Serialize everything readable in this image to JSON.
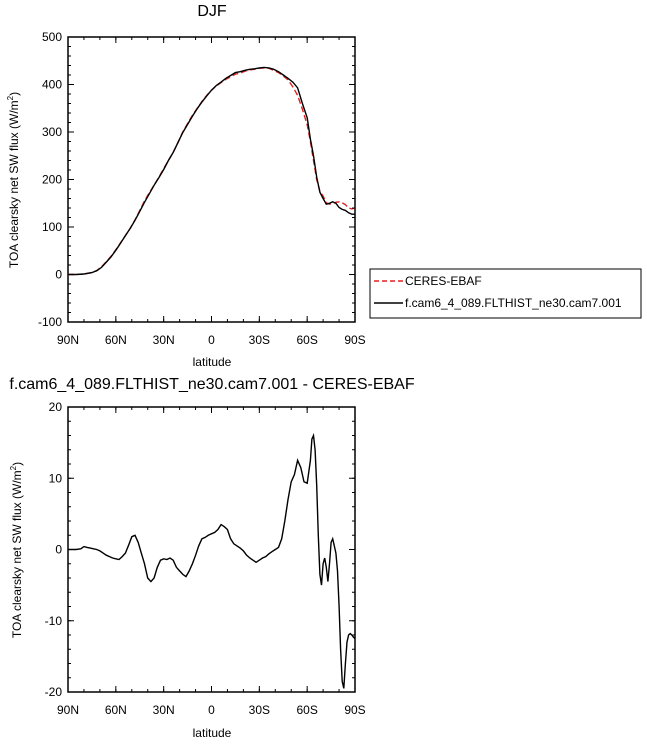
{
  "chart_data": [
    {
      "type": "line",
      "title": "DJF",
      "xlabel": "latitude",
      "ylabel": "TOA clearsky net SW flux",
      "ylabel_unit": "(W/m",
      "ylabel_sup": "2",
      "ylabel_close": ")",
      "xlim": [
        90,
        -90
      ],
      "ylim": [
        -100,
        500
      ],
      "xticks": [
        90,
        60,
        30,
        0,
        -30,
        -60,
        -90
      ],
      "xticklabels": [
        "90N",
        "60N",
        "30N",
        "0",
        "30S",
        "60S",
        "90S"
      ],
      "yticks": [
        -100,
        0,
        100,
        200,
        300,
        400,
        500
      ],
      "yticklabels": [
        "-100",
        "0",
        "100",
        "200",
        "300",
        "400",
        "500"
      ],
      "legend_position": "right",
      "series": [
        {
          "name": "CERES-EBAF",
          "color": "#e02020",
          "dash": "dashed",
          "x": [
            90,
            85,
            80,
            75,
            72,
            69,
            66,
            63,
            60,
            57,
            54,
            51,
            48,
            45,
            42,
            39,
            36,
            33,
            30,
            27,
            24,
            21,
            18,
            15,
            12,
            9,
            6,
            3,
            0,
            -3,
            -6,
            -9,
            -12,
            -15,
            -18,
            -21,
            -24,
            -27,
            -30,
            -33,
            -36,
            -39,
            -42,
            -45,
            -48,
            -51,
            -54,
            -57,
            -60,
            -62,
            -64,
            -66,
            -68,
            -70,
            -72,
            -74,
            -76,
            -78,
            -80,
            -82,
            -84,
            -86,
            -88,
            -90
          ],
          "y": [
            0,
            0,
            1,
            4,
            8,
            16,
            27,
            38,
            52,
            67,
            82,
            97,
            115,
            135,
            155,
            172,
            188,
            205,
            223,
            240,
            257,
            278,
            300,
            318,
            335,
            350,
            364,
            377,
            388,
            397,
            404,
            411,
            416,
            422,
            424,
            428,
            431,
            432,
            434,
            435,
            434,
            430,
            425,
            418,
            410,
            395,
            377,
            348,
            315,
            280,
            240,
            200,
            175,
            165,
            151,
            148,
            149,
            152,
            153,
            151,
            147,
            140,
            138,
            140
          ]
        },
        {
          "name": "f.cam6_4_089.FLTHIST_ne30.cam7.001",
          "color": "#000000",
          "dash": "solid",
          "x": [
            90,
            85,
            80,
            75,
            72,
            69,
            66,
            63,
            60,
            57,
            54,
            51,
            48,
            45,
            42,
            39,
            36,
            33,
            30,
            27,
            24,
            21,
            18,
            15,
            12,
            9,
            6,
            3,
            0,
            -3,
            -6,
            -9,
            -12,
            -15,
            -18,
            -21,
            -24,
            -27,
            -30,
            -33,
            -36,
            -39,
            -42,
            -45,
            -48,
            -51,
            -54,
            -57,
            -60,
            -62,
            -64,
            -66,
            -68,
            -70,
            -72,
            -74,
            -76,
            -78,
            -80,
            -82,
            -84,
            -86,
            -88,
            -90
          ],
          "y": [
            0,
            0,
            1,
            4,
            8,
            15,
            26,
            37,
            51,
            66,
            82,
            97,
            114,
            133,
            152,
            170,
            188,
            204,
            221,
            240,
            257,
            278,
            299,
            316,
            333,
            349,
            363,
            376,
            388,
            398,
            405,
            413,
            419,
            425,
            427,
            430,
            432,
            433,
            435,
            436,
            435,
            432,
            427,
            420,
            413,
            405,
            393,
            360,
            330,
            285,
            250,
            205,
            173,
            160,
            148,
            150,
            153,
            150,
            141,
            137,
            135,
            130,
            127,
            127
          ]
        }
      ]
    },
    {
      "type": "line",
      "title": "f.cam6_4_089.FLTHIST_ne30.cam7.001 - CERES-EBAF",
      "xlabel": "latitude",
      "ylabel": "TOA clearsky net SW flux",
      "ylabel_unit": "(W/m",
      "ylabel_sup": "2",
      "ylabel_close": ")",
      "xlim": [
        90,
        -90
      ],
      "ylim": [
        -20,
        20
      ],
      "xticks": [
        90,
        60,
        30,
        0,
        -30,
        -60,
        -90
      ],
      "xticklabels": [
        "90N",
        "60N",
        "30N",
        "0",
        "30S",
        "60S",
        "90S"
      ],
      "yticks": [
        -20,
        -10,
        0,
        10,
        20
      ],
      "yticklabels": [
        "-20",
        "-10",
        "0",
        "10",
        "20"
      ],
      "series": [
        {
          "name": "",
          "color": "#000000",
          "dash": "solid",
          "x": [
            90,
            85,
            82,
            80,
            78,
            76,
            74,
            72,
            70,
            68,
            66,
            64,
            62,
            60,
            58,
            56,
            54,
            52,
            50,
            48,
            46,
            44,
            42,
            40,
            38,
            36,
            34,
            32,
            30,
            28,
            26,
            24,
            22,
            20,
            18,
            16,
            14,
            12,
            10,
            8,
            6,
            4,
            2,
            0,
            -2,
            -4,
            -6,
            -8,
            -10,
            -12,
            -14,
            -16,
            -18,
            -20,
            -22,
            -24,
            -26,
            -28,
            -30,
            -32,
            -34,
            -36,
            -38,
            -40,
            -42,
            -44,
            -46,
            -48,
            -50,
            -52,
            -54,
            -56,
            -58,
            -60,
            -62,
            -63,
            -64,
            -65,
            -66,
            -67,
            -68,
            -69,
            -70,
            -71,
            -72,
            -73,
            -74,
            -75,
            -76,
            -77,
            -78,
            -79,
            -80,
            -81,
            -82,
            -83,
            -84,
            -85,
            -86,
            -87,
            -88,
            -89,
            -90
          ],
          "y": [
            0,
            0,
            0.1,
            0.4,
            0.3,
            0.2,
            0.1,
            0,
            -0.2,
            -0.5,
            -0.8,
            -1.0,
            -1.2,
            -1.3,
            -1.4,
            -1.0,
            -0.5,
            0.6,
            1.8,
            2.0,
            1.0,
            -0.5,
            -2.0,
            -4.0,
            -4.5,
            -4.0,
            -2.5,
            -1.5,
            -1.3,
            -1.4,
            -1.2,
            -1.5,
            -2.5,
            -3.0,
            -3.5,
            -3.8,
            -3.0,
            -2.0,
            -0.8,
            0.5,
            1.5,
            1.7,
            2.0,
            2.2,
            2.4,
            2.8,
            3.5,
            3.2,
            2.8,
            1.5,
            0.8,
            0.5,
            0.2,
            -0.2,
            -0.8,
            -1.2,
            -1.5,
            -1.8,
            -1.5,
            -1.2,
            -1.0,
            -0.6,
            -0.3,
            0,
            0.3,
            1.5,
            4.0,
            7.0,
            9.5,
            10.5,
            12.5,
            11.5,
            9.5,
            9.3,
            12.5,
            15.5,
            16.0,
            14.0,
            9.0,
            2.0,
            -3.5,
            -5.0,
            -2.0,
            -1.2,
            -2.5,
            -4.5,
            -2.0,
            1.0,
            1.5,
            0.5,
            -0.5,
            -3.0,
            -8.0,
            -14.0,
            -18.5,
            -19.5,
            -16.0,
            -13.0,
            -12.0,
            -11.8,
            -12.0,
            -12.3,
            -12.5
          ]
        }
      ]
    }
  ]
}
